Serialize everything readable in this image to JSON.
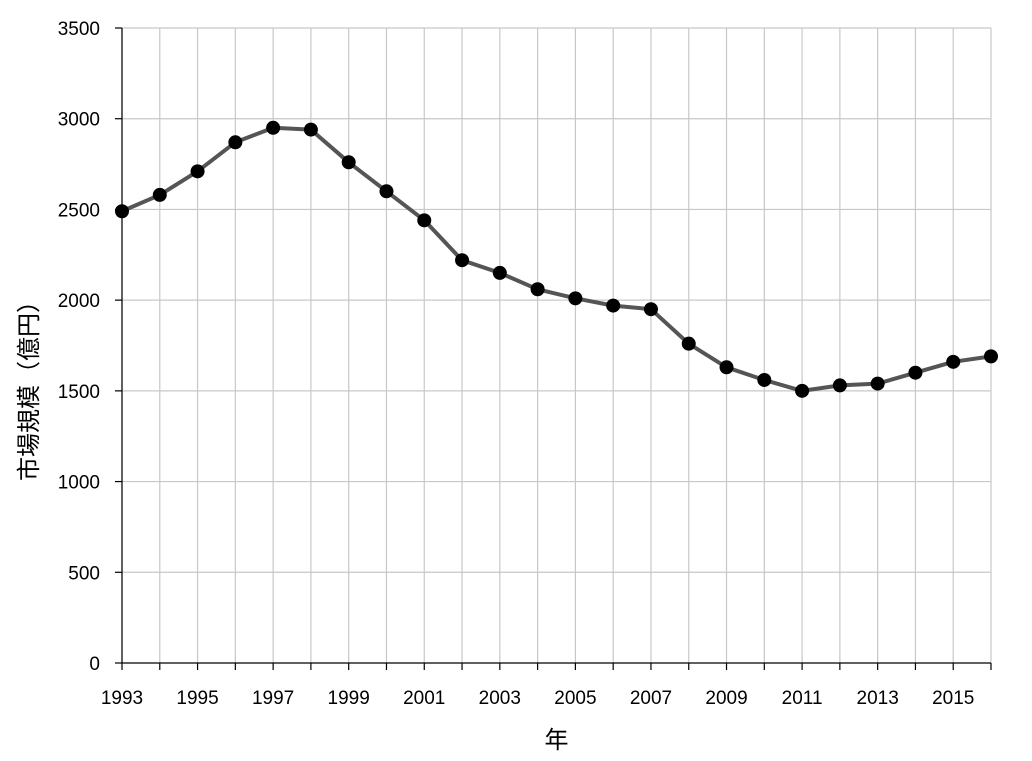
{
  "chart_data": {
    "type": "line",
    "xlabel": "年",
    "ylabel": "市場規模（億円）",
    "xlim": [
      1993,
      2016
    ],
    "ylim": [
      0,
      3500
    ],
    "yticks": [
      0,
      500,
      1000,
      1500,
      2000,
      2500,
      3000,
      3500
    ],
    "xtick_labels": [
      "1993",
      "1995",
      "1997",
      "1999",
      "2001",
      "2003",
      "2005",
      "2007",
      "2009",
      "2011",
      "2013",
      "2015"
    ],
    "grid": true,
    "colors": {
      "line": "#555555",
      "marker": "#000000",
      "grid": "#c8c8c8"
    },
    "series": [
      {
        "x": [
          1993,
          1994,
          1995,
          1996,
          1997,
          1998,
          1999,
          2000,
          2001,
          2002,
          2003,
          2004,
          2005,
          2006,
          2007,
          2008,
          2009,
          2010,
          2011,
          2012,
          2013,
          2014,
          2015,
          2016
        ],
        "values": [
          2490,
          2580,
          2710,
          2870,
          2950,
          2940,
          2760,
          2600,
          2440,
          2220,
          2150,
          2060,
          2010,
          1970,
          1950,
          1760,
          1630,
          1560,
          1500,
          1530,
          1540,
          1600,
          1660,
          1690
        ]
      }
    ]
  }
}
